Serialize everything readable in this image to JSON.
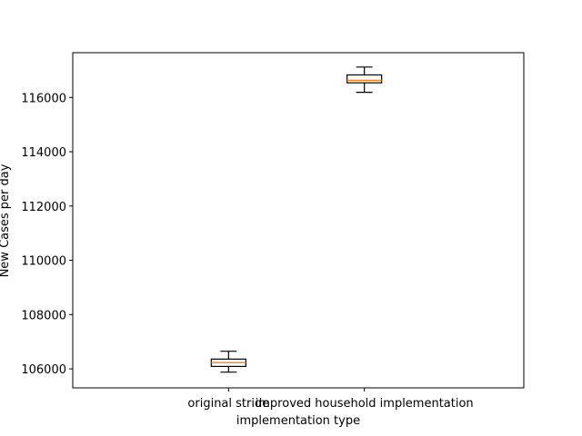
{
  "chart_data": {
    "type": "box",
    "title": "",
    "xlabel": "implementation type",
    "ylabel": "New Cases per day",
    "ylim": [
      105300,
      117650
    ],
    "yticks": [
      106000,
      108000,
      110000,
      112000,
      114000,
      116000
    ],
    "ytick_labels": [
      "106000",
      "108000",
      "110000",
      "112000",
      "114000",
      "116000"
    ],
    "grid": false,
    "categories": [
      "original stride",
      "improved household implementation"
    ],
    "boxes": [
      {
        "category": "original stride",
        "whisker_low": 105880,
        "q1": 106090,
        "median": 106230,
        "q3": 106360,
        "whisker_high": 106650
      },
      {
        "category": "improved household implementation",
        "whisker_low": 116190,
        "q1": 116540,
        "median": 116630,
        "q3": 116830,
        "whisker_high": 117120
      }
    ],
    "colors": {
      "box": "#000000",
      "median": "#ff7f0e",
      "whisker": "#000000"
    }
  }
}
